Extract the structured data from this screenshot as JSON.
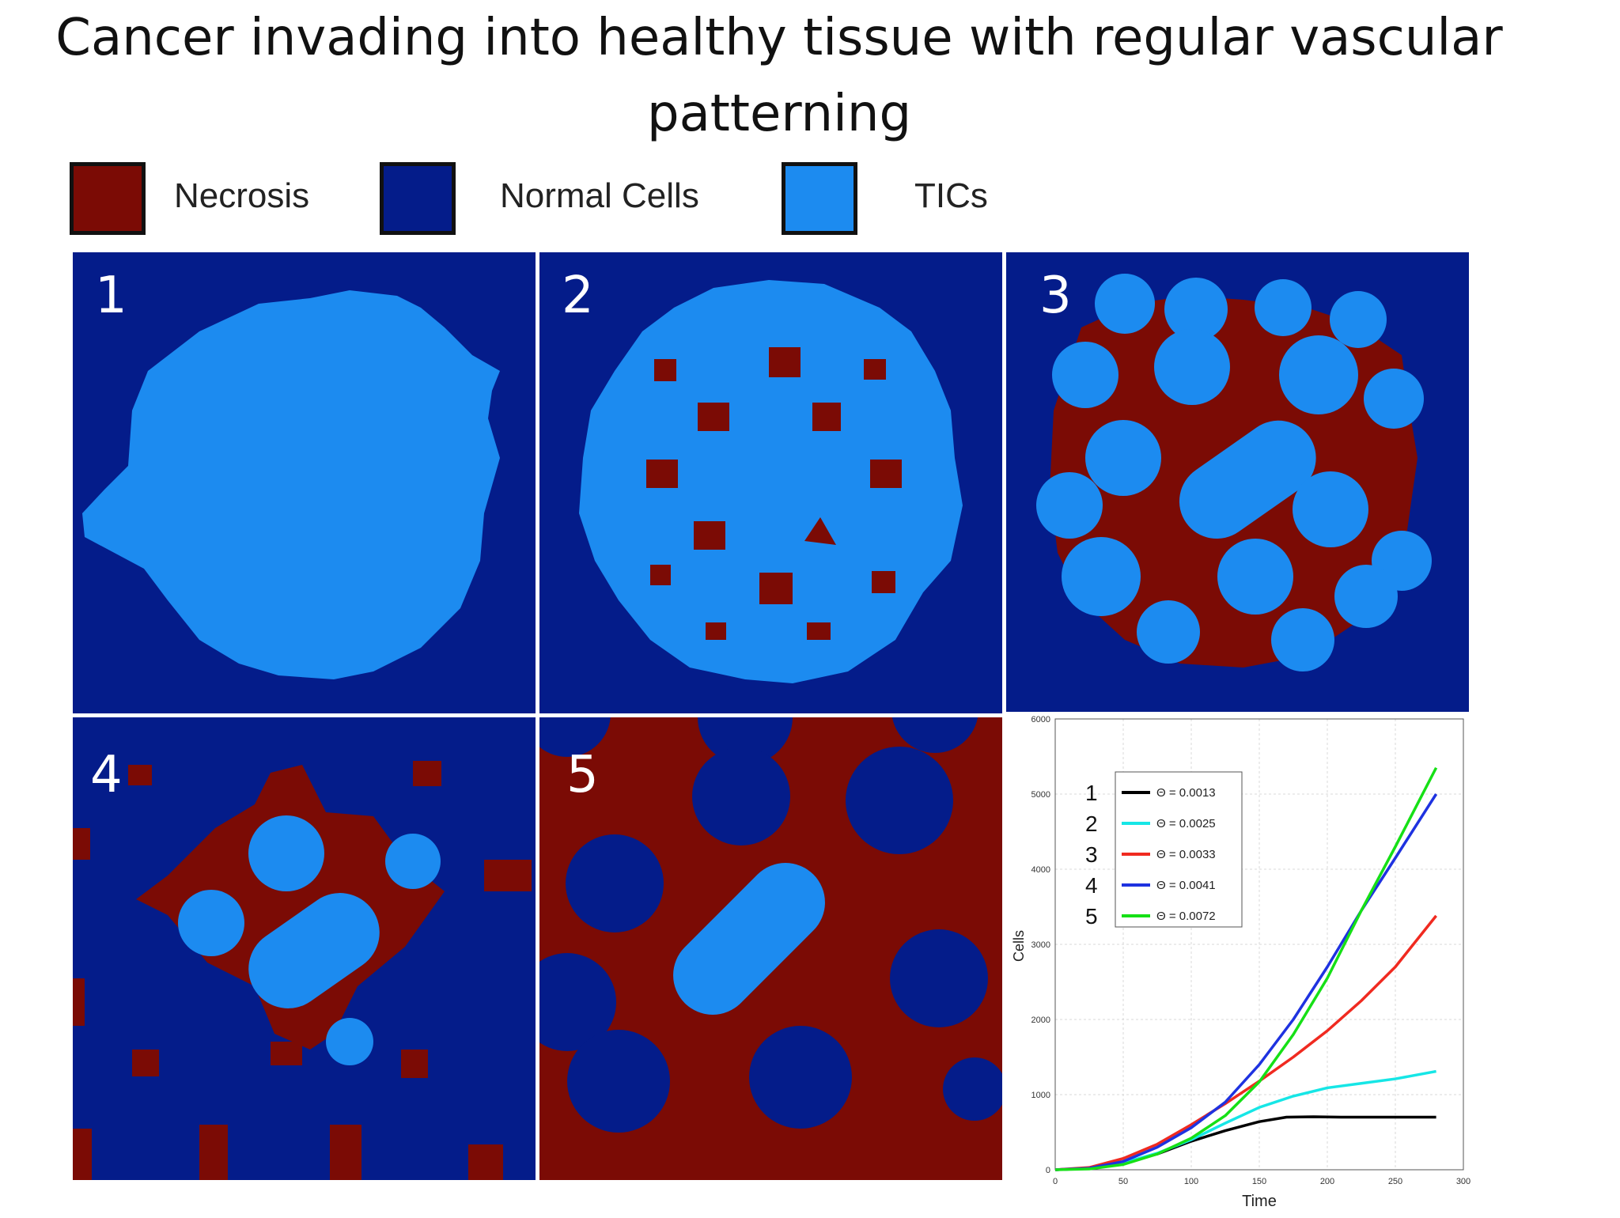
{
  "title": "Cancer invading into healthy tissue with regular vascular patterning",
  "colors": {
    "necrosis": "#7b0b05",
    "normal": "#041c8a",
    "tics": "#1c8bf0"
  },
  "legend": [
    {
      "label": "Necrosis",
      "color": "#7b0b05"
    },
    {
      "label": "Normal Cells",
      "color": "#041c8a"
    },
    {
      "label": "TICs",
      "color": "#1c8bf0"
    }
  ],
  "panels": [
    {
      "number": "1"
    },
    {
      "number": "2"
    },
    {
      "number": "3"
    },
    {
      "number": "4"
    },
    {
      "number": "5"
    }
  ],
  "chart_data": {
    "type": "line",
    "xlabel": "Time",
    "ylabel": "Cells",
    "xlim": [
      0,
      300
    ],
    "ylim": [
      0,
      6000
    ],
    "xticks": [
      "0",
      "50",
      "100",
      "150",
      "200",
      "250",
      "300"
    ],
    "yticks": [
      "0",
      "1000",
      "2000",
      "3000",
      "4000",
      "5000",
      "6000"
    ],
    "grid": true,
    "legend_position": "top-left",
    "series_numbers": [
      "1",
      "2",
      "3",
      "4",
      "5"
    ],
    "series": [
      {
        "name": "Θ = 0.0013",
        "color": "#000000",
        "x": [
          0,
          25,
          50,
          75,
          100,
          125,
          150,
          170,
          190,
          210,
          230,
          250,
          280
        ],
        "y": [
          0,
          20,
          90,
          210,
          380,
          520,
          640,
          700,
          705,
          700,
          700,
          700,
          700
        ]
      },
      {
        "name": "Θ = 0.0025",
        "color": "#16e6e6",
        "x": [
          0,
          25,
          50,
          75,
          100,
          125,
          150,
          175,
          200,
          225,
          250,
          280
        ],
        "y": [
          0,
          20,
          90,
          220,
          400,
          620,
          830,
          980,
          1090,
          1150,
          1210,
          1310
        ]
      },
      {
        "name": "Θ = 0.0033",
        "color": "#f02a20",
        "x": [
          0,
          25,
          50,
          75,
          100,
          125,
          150,
          175,
          200,
          225,
          250,
          280
        ],
        "y": [
          0,
          30,
          150,
          340,
          600,
          880,
          1180,
          1500,
          1850,
          2250,
          2700,
          3380
        ]
      },
      {
        "name": "Θ = 0.0041",
        "color": "#1e32e0",
        "x": [
          0,
          25,
          50,
          75,
          100,
          125,
          150,
          175,
          200,
          225,
          250,
          280
        ],
        "y": [
          0,
          20,
          110,
          300,
          560,
          900,
          1400,
          2000,
          2700,
          3450,
          4150,
          5000
        ]
      },
      {
        "name": "Θ = 0.0072",
        "color": "#16e016",
        "x": [
          0,
          25,
          50,
          75,
          100,
          125,
          150,
          175,
          200,
          225,
          250,
          280
        ],
        "y": [
          0,
          10,
          70,
          210,
          420,
          720,
          1170,
          1800,
          2550,
          3450,
          4300,
          5350
        ]
      }
    ]
  }
}
